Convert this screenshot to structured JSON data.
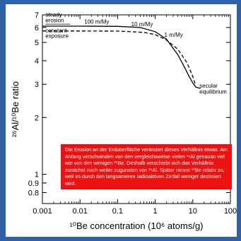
{
  "chart_data": {
    "type": "line",
    "title": "",
    "xlabel": "¹⁰Be concentration (10⁶ atoms/g)",
    "ylabel": "²⁶Al/¹⁰Be ratio",
    "xscale": "log",
    "yscale": "log",
    "xlim": [
      0.001,
      100
    ],
    "ylim": [
      0.7,
      7
    ],
    "xticks": [
      "0.001",
      "0.01",
      "0.1",
      "1",
      "10",
      "100"
    ],
    "xtick_values": [
      0.001,
      0.01,
      0.1,
      1,
      10,
      100
    ],
    "yticks": [
      "7",
      "6",
      "5",
      "4",
      "3",
      "2",
      "1",
      "0.9",
      "0.8"
    ],
    "ytick_values": [
      7,
      6,
      5,
      4,
      3,
      2,
      1,
      0.9,
      0.8
    ],
    "grid": false,
    "series": [
      {
        "style": "solid",
        "x": [
          0.001,
          0.01,
          0.1,
          0.4,
          1,
          2,
          4,
          6,
          8,
          10,
          12,
          16
        ],
        "y": [
          6.1,
          6.1,
          6.08,
          6.0,
          5.7,
          5.2,
          4.3,
          3.7,
          3.3,
          3.05,
          2.9,
          2.85
        ]
      },
      {
        "style": "dashed",
        "x": [
          0.001,
          0.01,
          0.1,
          0.5,
          1,
          2,
          4,
          7,
          10,
          12
        ],
        "y": [
          5.75,
          5.75,
          5.74,
          5.65,
          5.5,
          5.15,
          4.6,
          3.9,
          3.3,
          2.95
        ]
      }
    ],
    "annotations": [
      {
        "text": "steady",
        "x": 0.0012,
        "y": 6.85
      },
      {
        "text": "erosion",
        "x": 0.0012,
        "y": 6.4
      },
      {
        "text": "constant",
        "x": 0.0012,
        "y": 5.65
      },
      {
        "text": "exposure",
        "x": 0.0012,
        "y": 5.3
      },
      {
        "text": "100 m/My",
        "x": 0.013,
        "y": 6.28
      },
      {
        "text": "10 m/My",
        "x": 0.23,
        "y": 6.1
      },
      {
        "text": "1 m/My",
        "x": 1.75,
        "y": 5.35
      },
      {
        "text": "secular",
        "x": 15,
        "y": 2.88
      },
      {
        "text": "equilibrium",
        "x": 15,
        "y": 2.68
      }
    ]
  },
  "note": {
    "text": "Die Erosion an der Erdoberfläche verändert dieses Verhältnis etwas. Am Anfang verschwinden von den vergleichsweise vielen ²⁶Al genauso viel wie von den wenigen ¹⁰Be. Deshalb verschiebt sich das Verhältnis zunächst noch weiter zugunsten von ²⁶Al. Später nimmt ¹⁰Be relativ zu, weil es durch den langsameren radioaktiven Zerfall weniger dezimiert wird.",
    "background": "#ee1111",
    "color": "#ffffff"
  },
  "colors": {
    "frame": "#2f62a8",
    "panel": "#ffffff",
    "ink": "#000000"
  }
}
